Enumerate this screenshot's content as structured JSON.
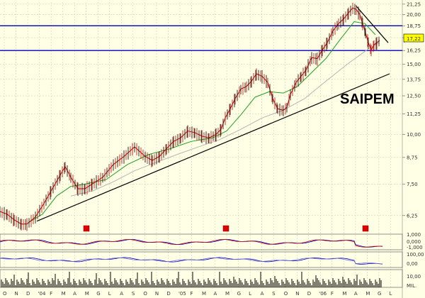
{
  "chart_data": {
    "type": "line",
    "title": "SAIPEM",
    "price_axis": {
      "scale": "log",
      "ylim": [
        5.8,
        21.5
      ],
      "ticks": [
        "6,25",
        "7,50",
        "8,75",
        "10,00",
        "11,25",
        "12,50",
        "13,75",
        "15,00",
        "16,25",
        "17,50",
        "18,75",
        "20,00",
        "21,25"
      ],
      "tick_values": [
        6.25,
        7.5,
        8.75,
        10.0,
        11.25,
        12.5,
        13.75,
        15.0,
        16.25,
        17.5,
        18.75,
        20.0,
        21.25
      ],
      "current_label": "17,22",
      "current_value": 17.22
    },
    "x_labels": [
      "O",
      "N",
      "D",
      "'04",
      "F",
      "M",
      "A",
      "M",
      "G",
      "L",
      "A",
      "S",
      "O",
      "N",
      "D",
      "'05",
      "F",
      "M",
      "A",
      "M",
      "G",
      "L",
      "A",
      "S",
      "O",
      "N",
      "D",
      "'06",
      "F",
      "M",
      "A",
      "M",
      "G",
      "L"
    ],
    "series": [
      {
        "type": "price",
        "x": [
          0,
          10,
          20,
          30,
          38,
          50,
          62,
          72,
          85,
          92,
          100,
          110,
          120,
          130,
          145,
          160,
          175,
          190,
          205,
          215,
          225,
          235,
          245,
          255,
          265,
          275,
          285,
          295,
          305,
          312,
          318,
          325,
          332,
          340,
          348,
          355,
          362,
          370,
          378,
          385,
          392,
          400,
          405,
          410,
          418,
          425,
          432,
          440,
          448,
          455,
          462,
          470,
          478,
          485,
          492,
          498,
          503,
          508,
          512,
          516,
          520,
          524,
          528,
          532,
          536
        ],
        "y": [
          6.4,
          6.3,
          6.1,
          5.95,
          5.95,
          6.2,
          6.7,
          7.2,
          7.9,
          8.3,
          7.8,
          7.3,
          7.3,
          7.5,
          7.8,
          8.4,
          8.8,
          9.3,
          8.8,
          8.6,
          8.8,
          9.2,
          9.6,
          9.8,
          10.2,
          10.1,
          9.9,
          9.8,
          10.0,
          10.3,
          11.0,
          11.6,
          12.3,
          13.0,
          13.2,
          13.6,
          14.2,
          14.0,
          13.5,
          12.3,
          11.6,
          11.5,
          11.7,
          12.6,
          13.5,
          14.0,
          14.5,
          15.6,
          15.5,
          16.3,
          17.0,
          18.2,
          19.0,
          19.5,
          20.2,
          20.8,
          20.6,
          20.0,
          19.0,
          18.0,
          17.0,
          16.3,
          16.8,
          17.0,
          17.22
        ]
      },
      {
        "type": "ma_short",
        "x": [
          40,
          60,
          80,
          100,
          120,
          150,
          180,
          210,
          240,
          270,
          300,
          320,
          340,
          360,
          380,
          400,
          420,
          440,
          460,
          480,
          500,
          515,
          530
        ],
        "y": [
          6.0,
          6.3,
          7.0,
          7.4,
          7.5,
          7.7,
          8.4,
          8.9,
          9.2,
          9.6,
          9.8,
          10.2,
          11.2,
          12.4,
          12.8,
          12.7,
          13.2,
          14.3,
          15.5,
          17.3,
          19.2,
          19.0,
          17.8
        ]
      },
      {
        "type": "ma_long",
        "x": [
          100,
          130,
          160,
          190,
          220,
          250,
          280,
          310,
          340,
          370,
          400,
          430,
          460,
          490,
          520,
          535
        ],
        "y": [
          7.0,
          7.2,
          7.6,
          8.1,
          8.5,
          8.9,
          9.3,
          9.7,
          10.3,
          11.0,
          11.5,
          12.3,
          13.6,
          15.0,
          16.4,
          17.0
        ]
      }
    ],
    "trendlines": [
      {
        "name": "support",
        "x": [
          52,
          550
        ],
        "y": [
          6.05,
          14.2
        ]
      },
      {
        "name": "resistance",
        "x": [
          503,
          548
        ],
        "y": [
          21.0,
          17.0
        ]
      }
    ],
    "hlines": [
      {
        "value": 18.75,
        "color": "#0000c0"
      },
      {
        "value": 16.25,
        "color": "#0000c0"
      }
    ],
    "markers": {
      "color": "#e00000",
      "x": [
        122,
        319,
        516
      ]
    },
    "osc1": {
      "ticks": [
        "1,000",
        "0,000",
        "-1,000"
      ],
      "tick_values": [
        1,
        0,
        -1
      ]
    },
    "osc2": {
      "ticks": [
        "100,00",
        "0,00"
      ],
      "tick_values": [
        100,
        0
      ]
    },
    "vol": {
      "ticks": [
        "10,00",
        "MIL."
      ]
    }
  },
  "colors": {
    "background": "#ffffe6",
    "grid": "#c8c8b0",
    "price": "#c00000",
    "ma_short": "#20a020",
    "ma_long": "#b4b4b4",
    "trend": "#000000",
    "hline": "#0000c0",
    "osc_line": "#0000c0",
    "osc_line2": "#c00000",
    "volume": "#000000"
  }
}
